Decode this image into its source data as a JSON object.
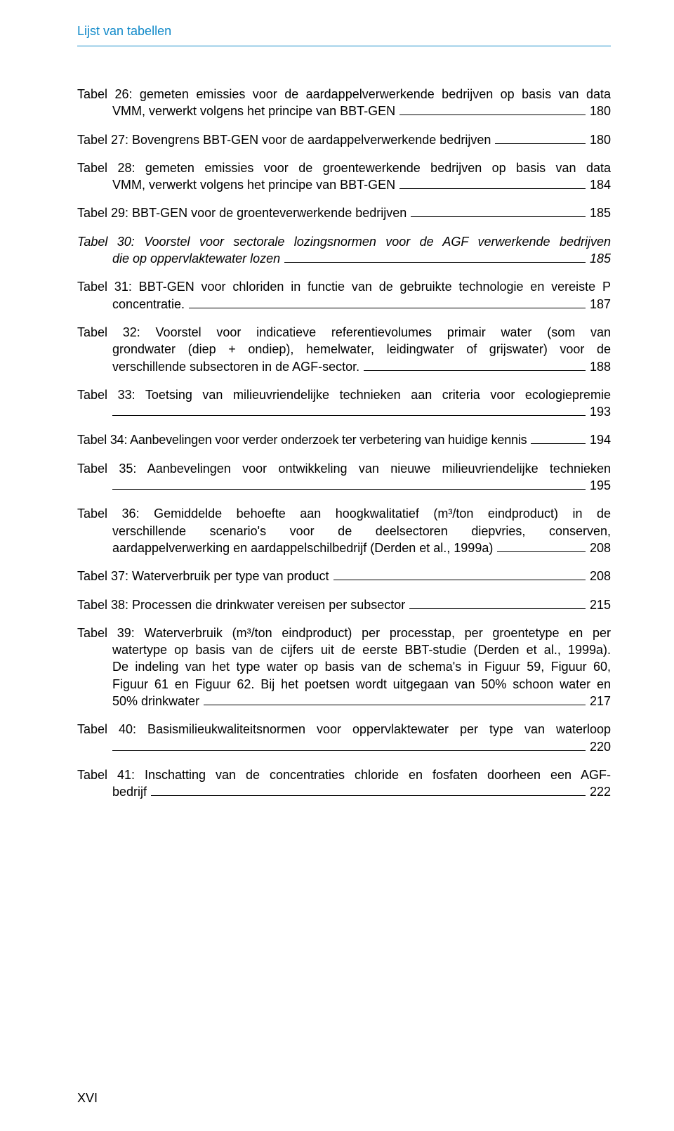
{
  "colors": {
    "header": "#1089c9",
    "text": "#000000",
    "background": "#ffffff",
    "leader": "#000000"
  },
  "typography": {
    "font_family": "Verdana, Geneva, sans-serif",
    "body_fontsize_pt": 14,
    "header_fontsize_pt": 14,
    "line_height": 1.35
  },
  "header": {
    "title": "Lijst van tabellen"
  },
  "entries": [
    {
      "lines": [
        "Tabel 26: gemeten emissies voor de aardappelverwerkende bedrijven op basis van data"
      ],
      "last_text": "VMM, verwerkt volgens het principe van BBT-GEN",
      "last_indent": true,
      "page": "180",
      "italic": false
    },
    {
      "lines": [
        "Tabel 27: Bovengrens BBT-GEN voor de aardappelverwerkende bedrijven"
      ],
      "last_text": "Tabel 27: Bovengrens BBT-GEN voor de aardappelverwerkende bedrijven",
      "last_indent": false,
      "page": "180",
      "italic": false,
      "single": true
    },
    {
      "lines": [
        "Tabel 28: gemeten emissies voor de groentewerkende bedrijven op basis van data"
      ],
      "last_text": "VMM, verwerkt volgens het principe van BBT-GEN",
      "last_indent": true,
      "page": "184",
      "italic": false
    },
    {
      "lines": [],
      "last_text": "Tabel 29: BBT-GEN voor de groenteverwerkende bedrijven",
      "last_indent": false,
      "page": "185",
      "italic": false,
      "single": true
    },
    {
      "lines": [
        "Tabel 30: Voorstel voor sectorale lozingsnormen voor de AGF verwerkende bedrijven"
      ],
      "last_text": "die op oppervlaktewater lozen",
      "last_indent": true,
      "page": "185",
      "italic": true
    },
    {
      "lines": [
        "Tabel 31: BBT-GEN voor chloriden in functie van de gebruikte technologie en vereiste P"
      ],
      "last_text": "concentratie.",
      "last_indent": true,
      "page": "187",
      "italic": false
    },
    {
      "lines": [
        "Tabel 32: Voorstel voor indicatieve referentievolumes primair water (som van",
        "grondwater (diep + ondiep), hemelwater, leidingwater of grijswater) voor de"
      ],
      "last_text": "verschillende subsectoren in de AGF-sector.",
      "last_indent": true,
      "page": "188",
      "italic": false
    },
    {
      "lines": [
        "Tabel 33: Toetsing van milieuvriendelijke technieken aan criteria voor ecologiepremie"
      ],
      "last_text": "",
      "last_indent": true,
      "page": "193",
      "italic": false,
      "only_leader": true
    },
    {
      "lines": [],
      "last_text": "Tabel 34: Aanbevelingen voor verder onderzoek ter verbetering van huidige kennis",
      "last_indent": false,
      "page": "194",
      "italic": false,
      "single": true,
      "tight": true
    },
    {
      "lines": [
        "Tabel 35: Aanbevelingen voor ontwikkeling van nieuwe milieuvriendelijke technieken"
      ],
      "last_text": "",
      "last_indent": true,
      "page": "195",
      "italic": false,
      "only_leader": true
    },
    {
      "lines": [
        "Tabel 36: Gemiddelde behoefte aan hoogkwalitatief (m³/ton eindproduct) in de",
        "verschillende scenario's voor de deelsectoren diepvries, conserven,"
      ],
      "last_text": "aardappelverwerking en aardappelschilbedrijf (Derden et al., 1999a)",
      "last_indent": true,
      "page": "208",
      "italic": false
    },
    {
      "lines": [],
      "last_text": "Tabel 37: Waterverbruik per type van product",
      "last_indent": false,
      "page": "208",
      "italic": false,
      "single": true
    },
    {
      "lines": [],
      "last_text": "Tabel 38: Processen die drinkwater vereisen per subsector",
      "last_indent": false,
      "page": "215",
      "italic": false,
      "single": true
    },
    {
      "lines": [
        "Tabel 39: Waterverbruik (m³/ton eindproduct) per processtap, per groentetype en per",
        "watertype op basis van de cijfers uit de eerste BBT-studie (Derden et al., 1999a).",
        "De indeling van het type water op basis van de schema's in Figuur 59, Figuur 60,",
        "Figuur 61 en Figuur 62. Bij het poetsen wordt uitgegaan van 50% schoon water en"
      ],
      "last_text": "50% drinkwater",
      "last_indent": true,
      "page": "217",
      "italic": false
    },
    {
      "lines": [
        "Tabel 40: Basismilieukwaliteitsnormen voor oppervlaktewater per type van waterloop"
      ],
      "last_text": "",
      "last_indent": true,
      "page": "220",
      "italic": false,
      "only_leader": true
    },
    {
      "lines": [
        "Tabel 41: Inschatting van de concentraties chloride en fosfaten doorheen een AGF-"
      ],
      "last_text": "bedrijf",
      "last_indent": true,
      "page": "222",
      "italic": false
    }
  ],
  "footer": {
    "page_number": "XVI"
  }
}
